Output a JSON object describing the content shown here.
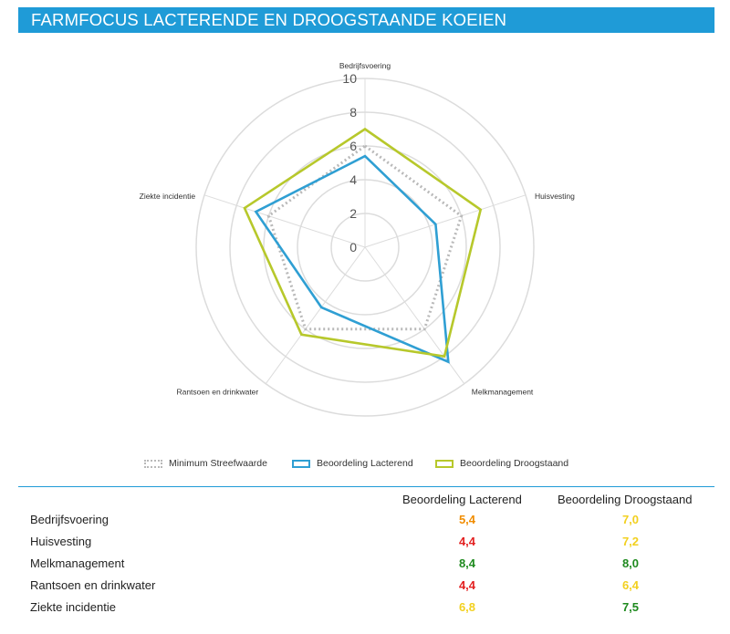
{
  "header": {
    "title": "FARMFOCUS LACTERENDE EN DROOGSTAANDE KOEIEN"
  },
  "colors": {
    "header_bg": "#1f9bd7",
    "minimum": "#b9b9b9",
    "lacterend": "#2f9fd3",
    "droogstaand": "#b7c82b",
    "grid": "#dcdcdc",
    "score_red": "#e32121",
    "score_orange": "#f08c00",
    "score_yellow": "#f2d01f",
    "score_green": "#1e8a1e"
  },
  "chart_data": {
    "type": "radar",
    "axes": [
      "Bedrijfsvoering",
      "Huisvesting",
      "Melkmanagement",
      "Rantsoen en drinkwater",
      "Ziekte incidentie"
    ],
    "tick_labels": [
      "0",
      "2",
      "4",
      "6",
      "8",
      "10"
    ],
    "range": [
      0,
      10
    ],
    "series": [
      {
        "name": "Minimum Streefwaarde",
        "values": [
          6.0,
          6.0,
          6.0,
          6.0,
          6.0
        ],
        "style": "dotted",
        "color": "#b9b9b9"
      },
      {
        "name": "Beoordeling Lacterend",
        "values": [
          5.4,
          4.4,
          8.4,
          4.4,
          6.8
        ],
        "style": "solid",
        "color": "#2f9fd3"
      },
      {
        "name": "Beoordeling Droogstaand",
        "values": [
          7.0,
          7.2,
          8.0,
          6.4,
          7.5
        ],
        "style": "solid",
        "color": "#b7c82b"
      }
    ],
    "legend_position": "bottom"
  },
  "table": {
    "columns": [
      "Beoordeling Lacterend",
      "Beoordeling Droogstaand"
    ],
    "rows": [
      {
        "label": "Bedrijfsvoering",
        "lacterend": "5,4",
        "lacterend_color": "#f08c00",
        "droogstaand": "7,0",
        "droogstaand_color": "#f2d01f"
      },
      {
        "label": "Huisvesting",
        "lacterend": "4,4",
        "lacterend_color": "#e32121",
        "droogstaand": "7,2",
        "droogstaand_color": "#f2d01f"
      },
      {
        "label": "Melkmanagement",
        "lacterend": "8,4",
        "lacterend_color": "#1e8a1e",
        "droogstaand": "8,0",
        "droogstaand_color": "#1e8a1e"
      },
      {
        "label": "Rantsoen en drinkwater",
        "lacterend": "4,4",
        "lacterend_color": "#e32121",
        "droogstaand": "6,4",
        "droogstaand_color": "#f2d01f"
      },
      {
        "label": "Ziekte incidentie",
        "lacterend": "6,8",
        "lacterend_color": "#f2d01f",
        "droogstaand": "7,5",
        "droogstaand_color": "#1e8a1e"
      }
    ]
  }
}
